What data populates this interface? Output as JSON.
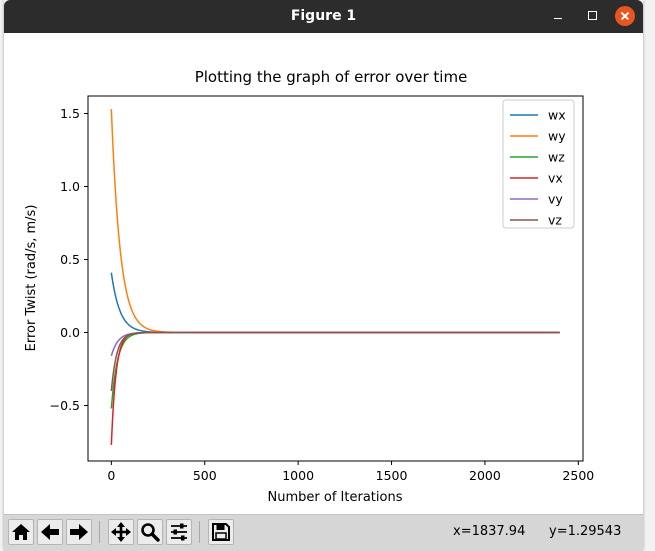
{
  "window": {
    "title": "Figure 1"
  },
  "toolbar": {
    "buttons": [
      {
        "name": "home-button",
        "icon": "home-icon"
      },
      {
        "name": "back-button",
        "icon": "arrow-left-icon"
      },
      {
        "name": "forward-button",
        "icon": "arrow-right-icon"
      },
      {
        "name": "pan-button",
        "icon": "move-icon"
      },
      {
        "name": "zoom-button",
        "icon": "magnifier-icon"
      },
      {
        "name": "configure-subplots-button",
        "icon": "sliders-icon"
      },
      {
        "name": "save-button",
        "icon": "floppy-disk-icon"
      }
    ],
    "x_readout": "x=1837.94",
    "y_readout": "y=1.29543"
  },
  "chart_data": {
    "type": "line",
    "title": "Plotting the graph of error over time",
    "xlabel": "Number of Iterations",
    "ylabel": "Error Twist (rad/s, m/s)",
    "xlim": [
      -125,
      2525
    ],
    "ylim": [
      -0.88,
      1.62
    ],
    "xticks": [
      0,
      500,
      1000,
      1500,
      2000,
      2500
    ],
    "yticks": [
      -0.5,
      0.0,
      0.5,
      1.0,
      1.5
    ],
    "grid": false,
    "legend_position": "top-right",
    "x_end": 2400,
    "series": [
      {
        "name": "wx",
        "color": "#1f77b4",
        "start": 0.41,
        "rate": 0.022
      },
      {
        "name": "wy",
        "color": "#ff7f0e",
        "start": 1.53,
        "rate": 0.021
      },
      {
        "name": "wz",
        "color": "#2ca02c",
        "start": -0.52,
        "rate": 0.03
      },
      {
        "name": "vx",
        "color": "#d62728",
        "start": -0.77,
        "rate": 0.04
      },
      {
        "name": "vy",
        "color": "#9467bd",
        "start": -0.16,
        "rate": 0.028
      },
      {
        "name": "vz",
        "color": "#8c564b",
        "start": -0.4,
        "rate": 0.034
      }
    ]
  }
}
